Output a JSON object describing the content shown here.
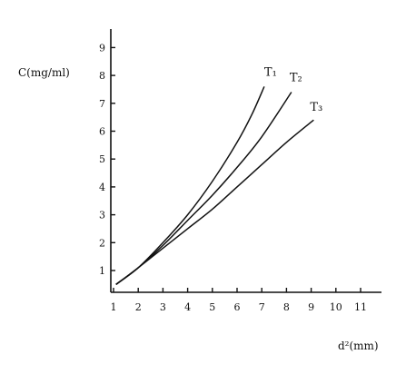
{
  "chart_data": {
    "type": "line",
    "xlabel": "d²(mm)",
    "ylabel": "C(mg/ml)",
    "xlim": [
      1,
      12
    ],
    "ylim": [
      0.5,
      10
    ],
    "x_ticks": [
      "1",
      "2",
      "3",
      "4",
      "5",
      "6",
      "7",
      "8",
      "9",
      "10",
      "11"
    ],
    "y_ticks": [
      "1",
      "2",
      "3",
      "4",
      "5",
      "6",
      "7",
      "8",
      "9"
    ],
    "grid": false,
    "series": [
      {
        "name": "T₁",
        "x": [
          1.1,
          2,
          3,
          4,
          5,
          6,
          6.6,
          7.1
        ],
        "y": [
          0.5,
          1.1,
          2.0,
          3.0,
          4.2,
          5.6,
          6.6,
          7.6
        ]
      },
      {
        "name": "T₂",
        "x": [
          1.1,
          2,
          3,
          4,
          5,
          6,
          7,
          8.2
        ],
        "y": [
          0.5,
          1.1,
          1.9,
          2.8,
          3.7,
          4.7,
          5.8,
          7.4
        ]
      },
      {
        "name": "T₃",
        "x": [
          1.1,
          2,
          3,
          4,
          5,
          6,
          7,
          8,
          9.1
        ],
        "y": [
          0.5,
          1.1,
          1.8,
          2.5,
          3.2,
          4.0,
          4.8,
          5.6,
          6.4
        ]
      }
    ]
  }
}
